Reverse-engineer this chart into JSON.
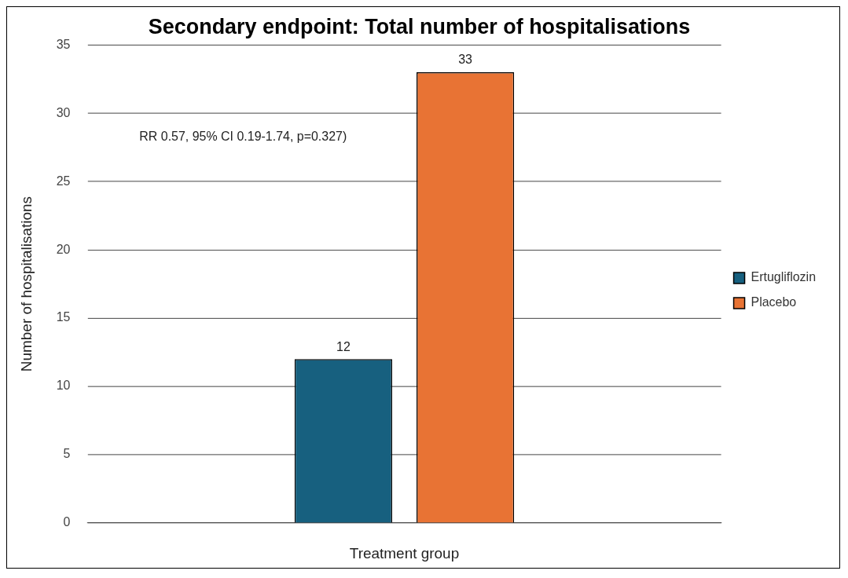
{
  "chart_data": {
    "type": "bar",
    "title": "Secondary endpoint: Total number of hospitalisations",
    "xlabel": "Treatment group",
    "ylabel": "Number of hospitalisations",
    "categories": [
      null
    ],
    "series": [
      {
        "name": "Ertugliflozin",
        "color": "#17607f",
        "values": [
          12
        ]
      },
      {
        "name": "Placebo",
        "color": "#e87334",
        "values": [
          33
        ]
      }
    ],
    "ylim": [
      0,
      35
    ],
    "yticks": [
      0,
      5,
      10,
      15,
      20,
      25,
      30,
      35
    ],
    "grid": "y",
    "legend": "right",
    "data_labels": true,
    "annotations": [
      "RR 0.57, 95% CI 0.19-1.74, p=0.327)"
    ]
  }
}
